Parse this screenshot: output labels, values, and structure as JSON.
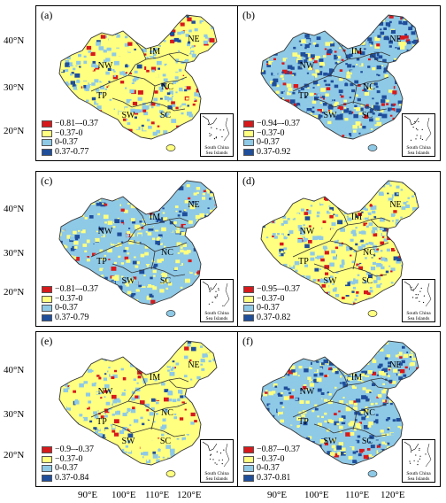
{
  "latitude_labels": [
    "40°N",
    "30°N",
    "20°N"
  ],
  "longitude_labels": [
    "90°E",
    "100°E",
    "110°E",
    "120°E"
  ],
  "region_labels": [
    "NW",
    "IM",
    "NE",
    "TP",
    "NC",
    "SW",
    "SC"
  ],
  "inset_label": "South China Sea Islands",
  "colors": {
    "class1": "#d7191c",
    "class2": "#ffff80",
    "class3": "#8ec9e6",
    "class4": "#1f4e9b",
    "boundary": "#333333"
  },
  "panels": [
    {
      "label": "(a)",
      "legend": [
        "−0.81–-0.37",
        "−0.37-0",
        "0-0.37",
        "0.37-0.77"
      ],
      "pattern": "mixed"
    },
    {
      "label": "(b)",
      "legend": [
        "−0.94–-0.37",
        "−0.37-0",
        "0-0.37",
        "0.37-0.92"
      ],
      "pattern": "blue-east"
    },
    {
      "label": "(c)",
      "legend": [
        "−0.81–-0.37",
        "−0.37-0",
        "0-0.37",
        "0.37-0.79"
      ],
      "pattern": "blue-west"
    },
    {
      "label": "(d)",
      "legend": [
        "−0.95–-0.37",
        "−0.37-0",
        "0-0.37",
        "0.37-0.82"
      ],
      "pattern": "light"
    },
    {
      "label": "(e)",
      "legend": [
        "−0.9–-0.37",
        "−0.37-0",
        "0-0.37",
        "0.37-0.84"
      ],
      "pattern": "yellow"
    },
    {
      "label": "(f)",
      "legend": [
        "−0.87–-0.37",
        "−0.37-0",
        "0-0.37",
        "0.37-0.81"
      ],
      "pattern": "blue-center"
    }
  ]
}
